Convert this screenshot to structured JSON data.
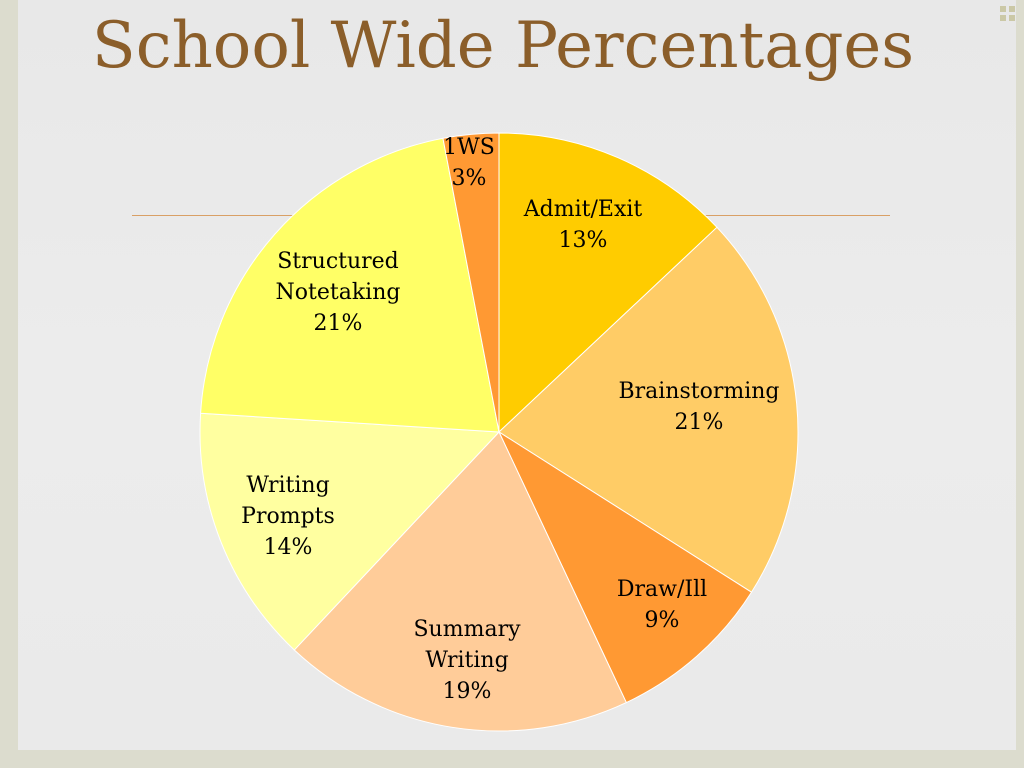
{
  "slide": {
    "title": "School Wide Percentages"
  },
  "colors": {
    "title": "#8b5e2a",
    "background": "#ebebeb",
    "frame": "#dcdcce",
    "rule": "#d9a066"
  },
  "chart_data": {
    "type": "pie",
    "title": "",
    "start_angle_deg": 0,
    "direction": "clockwise",
    "slices": [
      {
        "label_lines": [
          "Admit/Exit",
          "13%"
        ],
        "value": 13,
        "color": "#ffcc00"
      },
      {
        "label_lines": [
          "Brainstorming",
          "21%"
        ],
        "value": 21,
        "color": "#ffcc66"
      },
      {
        "label_lines": [
          "Draw/Ill",
          "9%"
        ],
        "value": 9,
        "color": "#ff9933"
      },
      {
        "label_lines": [
          "Summary",
          "Writing",
          "19%"
        ],
        "value": 19,
        "color": "#ffcc99"
      },
      {
        "label_lines": [
          "Writing",
          "Prompts",
          "14%"
        ],
        "value": 14,
        "color": "#ffffa0"
      },
      {
        "label_lines": [
          "Structured",
          "Notetaking",
          "21%"
        ],
        "value": 21,
        "color": "#ffff66"
      },
      {
        "label_lines": [
          "1WS",
          "3%"
        ],
        "value": 3,
        "color": "#ff9933"
      }
    ]
  }
}
